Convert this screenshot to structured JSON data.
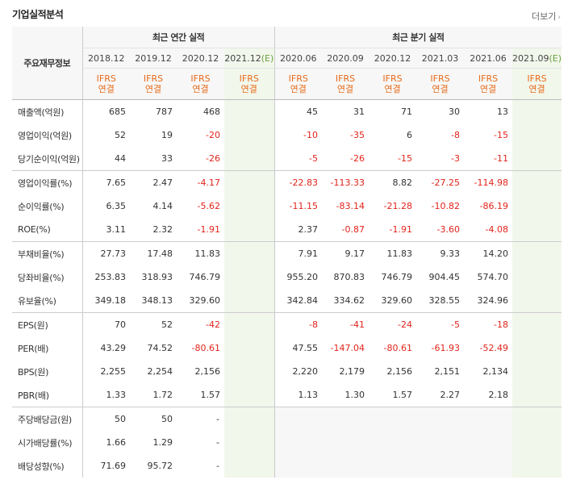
{
  "header": {
    "title": "기업실적분석",
    "more_label": "더보기"
  },
  "table": {
    "row_header": "주요재무정보",
    "annual_title": "최근 연간 실적",
    "quarter_title": "최근 분기 실적",
    "accounting": "IFRS\n연결",
    "periods": [
      {
        "label": "2018.12",
        "est": ""
      },
      {
        "label": "2019.12",
        "est": ""
      },
      {
        "label": "2020.12",
        "est": ""
      },
      {
        "label": "2021.12",
        "est": "(E)"
      },
      {
        "label": "2020.06",
        "est": ""
      },
      {
        "label": "2020.09",
        "est": ""
      },
      {
        "label": "2020.12",
        "est": ""
      },
      {
        "label": "2021.03",
        "est": ""
      },
      {
        "label": "2021.06",
        "est": ""
      },
      {
        "label": "2021.09",
        "est": "(E)"
      }
    ],
    "rows": [
      {
        "label": "매출액(억원)",
        "values": [
          "685",
          "787",
          "468",
          "",
          "45",
          "31",
          "71",
          "30",
          "13",
          ""
        ]
      },
      {
        "label": "영업이익(억원)",
        "values": [
          "52",
          "19",
          "-20",
          "",
          "-10",
          "-35",
          "6",
          "-8",
          "-15",
          ""
        ]
      },
      {
        "label": "당기순이익(억원)",
        "values": [
          "44",
          "33",
          "-26",
          "",
          "-5",
          "-26",
          "-15",
          "-3",
          "-11",
          ""
        ]
      },
      {
        "label": "영업이익률(%)",
        "values": [
          "7.65",
          "2.47",
          "-4.17",
          "",
          "-22.83",
          "-113.33",
          "8.82",
          "-27.25",
          "-114.98",
          ""
        ]
      },
      {
        "label": "순이익률(%)",
        "values": [
          "6.35",
          "4.14",
          "-5.62",
          "",
          "-11.15",
          "-83.14",
          "-21.28",
          "-10.82",
          "-86.19",
          ""
        ]
      },
      {
        "label": "ROE(%)",
        "values": [
          "3.11",
          "2.32",
          "-1.91",
          "",
          "2.37",
          "-0.87",
          "-1.91",
          "-3.60",
          "-4.08",
          ""
        ]
      },
      {
        "label": "부채비율(%)",
        "values": [
          "27.73",
          "17.48",
          "11.83",
          "",
          "7.91",
          "9.17",
          "11.83",
          "9.33",
          "14.20",
          ""
        ]
      },
      {
        "label": "당좌비율(%)",
        "values": [
          "253.83",
          "318.93",
          "746.79",
          "",
          "955.20",
          "870.83",
          "746.79",
          "904.45",
          "574.70",
          ""
        ]
      },
      {
        "label": "유보율(%)",
        "values": [
          "349.18",
          "348.13",
          "329.60",
          "",
          "342.84",
          "334.62",
          "329.60",
          "328.55",
          "324.96",
          ""
        ]
      },
      {
        "label": "EPS(원)",
        "values": [
          "70",
          "52",
          "-42",
          "",
          "-8",
          "-41",
          "-24",
          "-5",
          "-18",
          ""
        ]
      },
      {
        "label": "PER(배)",
        "values": [
          "43.29",
          "74.52",
          "-80.61",
          "",
          "47.55",
          "-147.04",
          "-80.61",
          "-61.93",
          "-52.49",
          ""
        ]
      },
      {
        "label": "BPS(원)",
        "values": [
          "2,255",
          "2,254",
          "2,156",
          "",
          "2,220",
          "2,179",
          "2,156",
          "2,151",
          "2,134",
          ""
        ]
      },
      {
        "label": "PBR(배)",
        "values": [
          "1.33",
          "1.72",
          "1.57",
          "",
          "1.13",
          "1.30",
          "1.57",
          "2.27",
          "2.18",
          ""
        ]
      },
      {
        "label": "주당배당금(원)",
        "values": [
          "50",
          "50",
          "-",
          "",
          "",
          "",
          "",
          "",
          "",
          ""
        ]
      },
      {
        "label": "시가배당률(%)",
        "values": [
          "1.66",
          "1.29",
          "-",
          "",
          "",
          "",
          "",
          "",
          "",
          ""
        ]
      },
      {
        "label": "배당성향(%)",
        "values": [
          "71.69",
          "95.72",
          "-",
          "",
          "",
          "",
          "",
          "",
          "",
          ""
        ]
      }
    ]
  },
  "colors": {
    "negative": "#e0241b",
    "accounting": "#e76b1a",
    "estimate_bg": "#f2f7ec"
  }
}
